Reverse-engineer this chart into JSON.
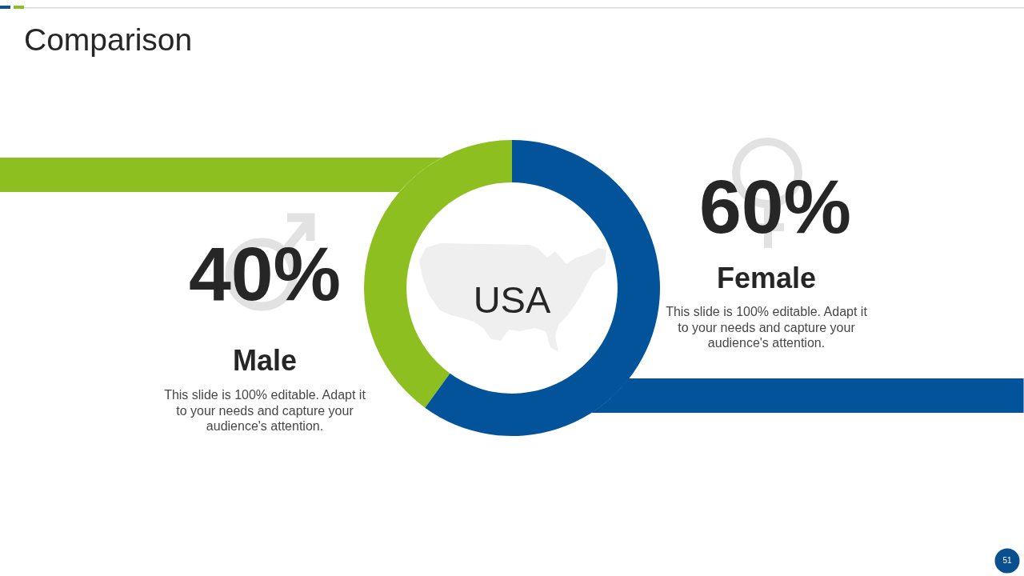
{
  "chart_data": {
    "type": "donut",
    "title": "Comparison",
    "categories": [
      "Male",
      "Female"
    ],
    "values": [
      40,
      60
    ],
    "colors": [
      "#8cbf1f",
      "#03539a"
    ],
    "value_labels": [
      "40%",
      "60%"
    ],
    "annotations": [
      "USA",
      "This slide is 100% editable. Adapt it to your needs and capture your audience's attention.",
      "This slide is 100% editable. Adapt it to your needs and capture your audience's attention.",
      "51"
    ]
  }
}
